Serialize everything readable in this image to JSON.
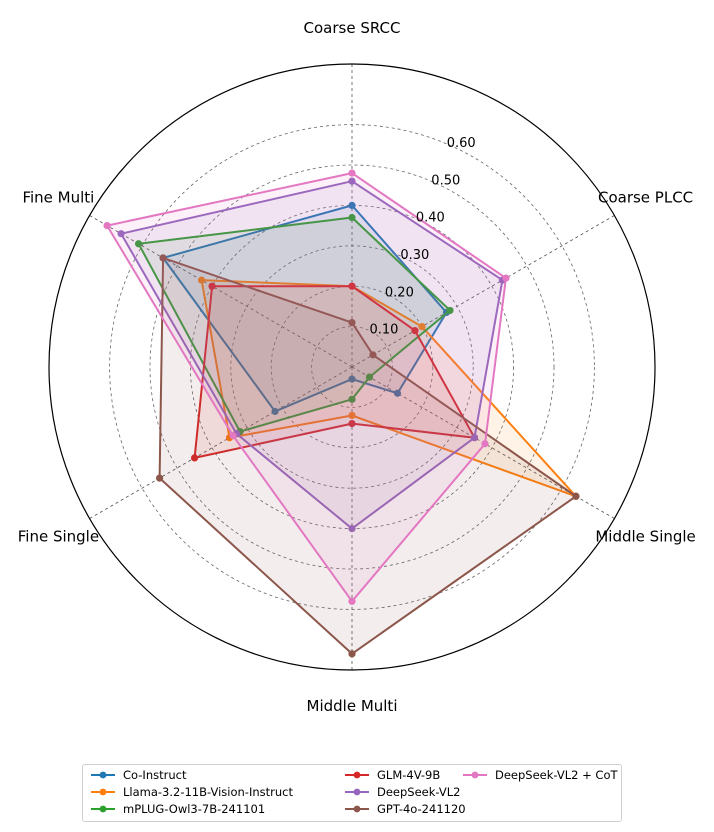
{
  "chart_data": {
    "type": "radar",
    "axes": [
      "Coarse SRCC",
      "Coarse PLCC",
      "Middle Single",
      "Middle Multi",
      "Fine Single",
      "Fine Multi"
    ],
    "tick_labels": [
      "0.10",
      "0.20",
      "0.30",
      "0.40",
      "0.50",
      "0.60"
    ],
    "ticks": [
      0.1,
      0.2,
      0.3,
      0.4,
      0.5,
      0.6
    ],
    "rlim": [
      0,
      0.75
    ],
    "grid": true,
    "legend_position": "bottom",
    "series": [
      {
        "name": "Co-Instruct",
        "color": "#1f77b4",
        "values": [
          0.4,
          0.27,
          0.13,
          0.03,
          0.22,
          0.54
        ]
      },
      {
        "name": "Llama-3.2-11B-Vision-Instruct",
        "color": "#ff7f0e",
        "values": [
          0.2,
          0.2,
          0.64,
          0.12,
          0.35,
          0.43
        ]
      },
      {
        "name": "mPLUG-Owl3-7B-241101",
        "color": "#2ca02c",
        "values": [
          0.37,
          0.28,
          0.05,
          0.08,
          0.32,
          0.61
        ]
      },
      {
        "name": "GLM-4V-9B",
        "color": "#d62728",
        "values": [
          0.2,
          0.18,
          0.35,
          0.14,
          0.45,
          0.4
        ]
      },
      {
        "name": "DeepSeek-VL2",
        "color": "#9467bd",
        "values": [
          0.46,
          0.43,
          0.35,
          0.4,
          0.33,
          0.66
        ]
      },
      {
        "name": "GPT-4o-241120",
        "color": "#8c564b",
        "values": [
          0.11,
          0.06,
          0.64,
          0.71,
          0.55,
          0.54
        ]
      },
      {
        "name": "DeepSeek-VL2 + CoT",
        "color": "#e377c2",
        "values": [
          0.48,
          0.44,
          0.38,
          0.58,
          0.34,
          0.7
        ]
      }
    ]
  }
}
